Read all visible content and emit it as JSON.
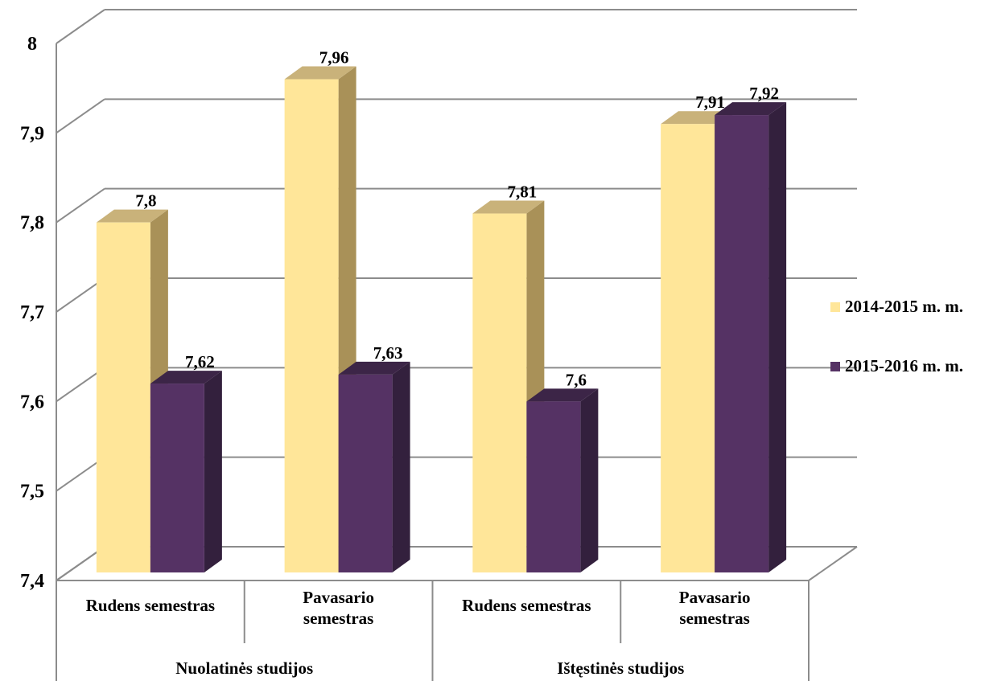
{
  "chart_data": {
    "type": "bar",
    "title": "",
    "xlabel": "",
    "ylabel": "",
    "ylim": [
      7.4,
      8.0
    ],
    "y_ticks": [
      7.4,
      7.5,
      7.6,
      7.7,
      7.8,
      7.9,
      8.0
    ],
    "y_tick_labels": [
      "7,4",
      "7,5",
      "7,6",
      "7,7",
      "7,8",
      "7,9",
      "8"
    ],
    "categories": [
      {
        "label": "Rudens semestras",
        "group": "Nuolatinės studijos"
      },
      {
        "label": "Pavasario semestras",
        "group": "Nuolatinės studijos"
      },
      {
        "label": "Rudens semestras",
        "group": "Ištęstinės studijos"
      },
      {
        "label": "Pavasario semestras",
        "group": "Ištęstinės studijos"
      }
    ],
    "groups": [
      "Nuolatinės studijos",
      "Ištęstinės studijos"
    ],
    "series": [
      {
        "name": "2014-2015 m. m.",
        "color": "#FFE699",
        "side_color": "#A99158",
        "top_color": "#C9B27A",
        "values": [
          7.8,
          7.96,
          7.81,
          7.91
        ],
        "value_labels": [
          "7,8",
          "7,96",
          "7,81",
          "7,91"
        ]
      },
      {
        "name": "2015-2016 m. m.",
        "color": "#553264",
        "side_color": "#33203D",
        "top_color": "#3C2547",
        "values": [
          7.62,
          7.63,
          7.6,
          7.92
        ],
        "value_labels": [
          "7,62",
          "7,63",
          "7,6",
          "7,92"
        ]
      }
    ],
    "grid": true,
    "legend_position": "right",
    "style": "3d-clustered-column"
  }
}
